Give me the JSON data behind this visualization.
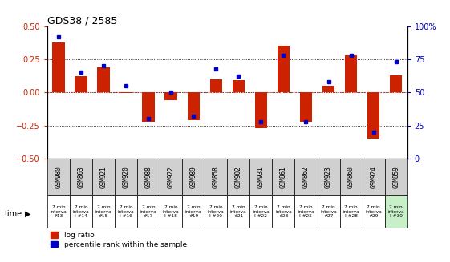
{
  "title": "GDS38 / 2585",
  "samples": [
    "GSM980",
    "GSM863",
    "GSM921",
    "GSM920",
    "GSM988",
    "GSM922",
    "GSM989",
    "GSM858",
    "GSM902",
    "GSM931",
    "GSM861",
    "GSM862",
    "GSM923",
    "GSM860",
    "GSM924",
    "GSM859"
  ],
  "intervals": [
    "#13",
    "I #14",
    "#15",
    "I #16",
    "#17",
    "I #18",
    "#19",
    "I #20",
    "#21",
    "I #22",
    "#23",
    "I #25",
    "#27",
    "I #28",
    "#29",
    "I #30"
  ],
  "log_ratio": [
    0.38,
    0.12,
    0.19,
    -0.005,
    -0.22,
    -0.06,
    -0.21,
    0.1,
    0.09,
    -0.27,
    0.35,
    -0.22,
    0.05,
    0.28,
    -0.35,
    0.13
  ],
  "percentile": [
    92,
    65,
    70,
    55,
    30,
    50,
    32,
    68,
    62,
    28,
    78,
    28,
    58,
    78,
    20,
    73
  ],
  "bar_color": "#cc2200",
  "dot_color": "#0000cc",
  "bg_color": "#ffffff",
  "ylim_left": [
    -0.5,
    0.5
  ],
  "ylim_right": [
    0,
    100
  ],
  "yticks_left": [
    -0.5,
    -0.25,
    0,
    0.25,
    0.5
  ],
  "yticks_right": [
    0,
    25,
    50,
    75,
    100
  ],
  "dotted_lines": [
    -0.25,
    0,
    0.25
  ],
  "bar_width": 0.55,
  "left_tick_color": "#cc2200",
  "right_tick_color": "#0000cc",
  "cell_color_sample": "#d0d0d0",
  "cell_colors_time": [
    "#ffffff",
    "#ffffff",
    "#ffffff",
    "#ffffff",
    "#ffffff",
    "#ffffff",
    "#ffffff",
    "#ffffff",
    "#ffffff",
    "#ffffff",
    "#ffffff",
    "#ffffff",
    "#ffffff",
    "#ffffff",
    "#ffffff",
    "#c8f0c8"
  ]
}
